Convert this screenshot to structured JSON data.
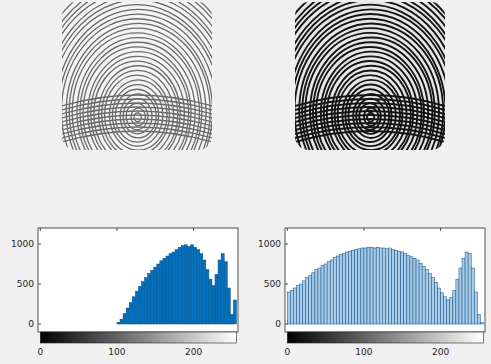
{
  "chart_data": [
    {
      "type": "histogram",
      "bins": [
        0,
        4,
        8,
        12,
        16,
        20,
        24,
        28,
        32,
        36,
        40,
        44,
        48,
        52,
        56,
        60,
        64,
        68,
        72,
        76,
        80,
        84,
        88,
        92,
        96,
        100,
        104,
        108,
        112,
        116,
        120,
        124,
        128,
        132,
        136,
        140,
        144,
        148,
        152,
        156,
        160,
        164,
        168,
        172,
        176,
        180,
        184,
        188,
        192,
        196,
        200,
        204,
        208,
        212,
        216,
        220,
        224,
        228,
        232,
        236,
        240,
        244,
        248,
        252,
        256
      ],
      "values": [
        0,
        0,
        0,
        0,
        0,
        0,
        0,
        0,
        0,
        0,
        0,
        0,
        0,
        0,
        0,
        0,
        0,
        0,
        0,
        0,
        0,
        0,
        0,
        0,
        0,
        20,
        60,
        130,
        200,
        270,
        340,
        410,
        470,
        530,
        580,
        630,
        670,
        710,
        750,
        790,
        820,
        850,
        880,
        900,
        930,
        960,
        980,
        990,
        970,
        990,
        960,
        930,
        880,
        800,
        680,
        560,
        480,
        620,
        800,
        880,
        780,
        450,
        120,
        300
      ],
      "color": "#0072bd",
      "xlim": [
        -3,
        258
      ],
      "xticks": [
        0,
        100,
        200
      ],
      "ylim": [
        -100,
        1200
      ],
      "yticks": [
        0,
        500,
        1000
      ],
      "grid": false
    },
    {
      "type": "histogram",
      "bins": [
        0,
        4,
        8,
        12,
        16,
        20,
        24,
        28,
        32,
        36,
        40,
        44,
        48,
        52,
        56,
        60,
        64,
        68,
        72,
        76,
        80,
        84,
        88,
        92,
        96,
        100,
        104,
        108,
        112,
        116,
        120,
        124,
        128,
        132,
        136,
        140,
        144,
        148,
        152,
        156,
        160,
        164,
        168,
        172,
        176,
        180,
        184,
        188,
        192,
        196,
        200,
        204,
        208,
        212,
        216,
        220,
        224,
        228,
        232,
        236,
        240,
        244,
        248,
        252,
        256
      ],
      "values": [
        400,
        420,
        450,
        480,
        500,
        540,
        580,
        610,
        640,
        680,
        700,
        730,
        750,
        780,
        800,
        830,
        850,
        870,
        880,
        900,
        910,
        920,
        930,
        940,
        950,
        950,
        960,
        960,
        950,
        960,
        950,
        950,
        940,
        950,
        930,
        920,
        910,
        900,
        880,
        860,
        840,
        820,
        800,
        760,
        720,
        680,
        630,
        580,
        520,
        450,
        390,
        340,
        300,
        330,
        420,
        560,
        700,
        820,
        900,
        880,
        700,
        400,
        120,
        20
      ],
      "color": "#a9cbe6",
      "xlim": [
        -3,
        258
      ],
      "xticks": [
        0,
        100,
        200
      ],
      "ylim": [
        -100,
        1200
      ],
      "yticks": [
        0,
        500,
        1000
      ],
      "grid": false
    }
  ]
}
